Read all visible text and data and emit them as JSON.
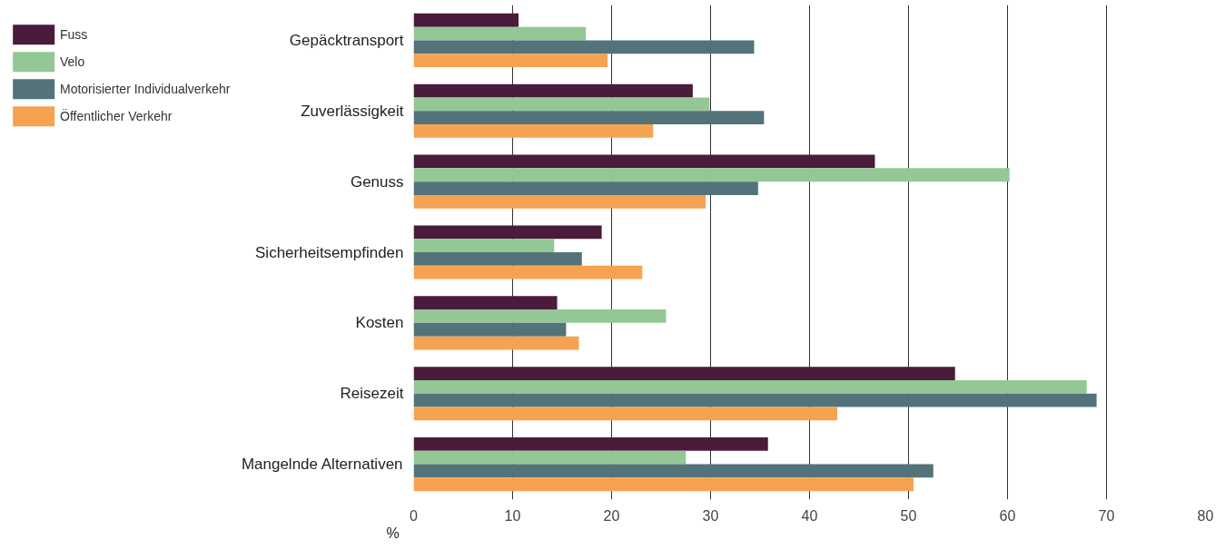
{
  "chart_data": {
    "type": "bar",
    "orientation": "horizontal",
    "xlabel": "%",
    "categories": [
      "Gepäcktransport",
      "Zuverlässigkeit",
      "Genuss",
      "Sicherheitsempfinden",
      "Kosten",
      "Reisezeit",
      "Mangelnde Alternativen"
    ],
    "series": [
      {
        "name": "Fuss",
        "color": "#4a1b3b",
        "values": [
          10.6,
          28.2,
          46.6,
          19.0,
          14.5,
          54.7,
          35.8
        ]
      },
      {
        "name": "Velo",
        "color": "#94c796",
        "values": [
          17.4,
          29.9,
          60.2,
          14.2,
          25.5,
          68.0,
          27.5
        ]
      },
      {
        "name": "Motorisierter Individualverkehr",
        "color": "#52737a",
        "values": [
          34.4,
          35.4,
          34.8,
          17.0,
          15.4,
          69.0,
          52.5
        ]
      },
      {
        "name": "Öffentlicher Verkehr",
        "color": "#f5a350",
        "values": [
          19.6,
          24.2,
          29.5,
          23.1,
          16.7,
          42.8,
          50.5
        ]
      }
    ],
    "xlim": [
      0,
      80
    ],
    "xticks": [
      0,
      10,
      20,
      30,
      40,
      50,
      60,
      70,
      80
    ],
    "grid": "x",
    "legend": "top left"
  }
}
